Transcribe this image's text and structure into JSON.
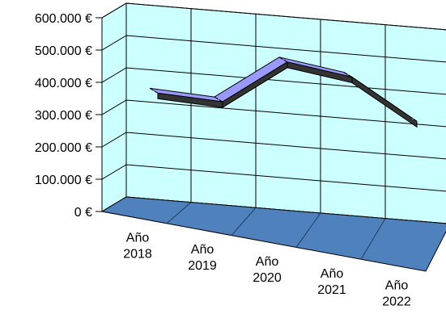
{
  "chart_data": {
    "type": "line",
    "style": "3d-ribbon",
    "categories": [
      [
        "Año",
        "2018"
      ],
      [
        "Año",
        "2019"
      ],
      [
        "Año",
        "2020"
      ],
      [
        "Año",
        "2021"
      ],
      [
        "Año",
        "2022"
      ]
    ],
    "values": [
      350000,
      350000,
      500000,
      480000,
      370000
    ],
    "ylim": [
      0,
      600000
    ],
    "yticks": [
      "0 €",
      "100.000 €",
      "200.000 €",
      "300.000 €",
      "400.000 €",
      "500.000 €",
      "600.000 €"
    ],
    "grid": true,
    "legend": false,
    "title": "",
    "xlabel": "",
    "ylabel": "",
    "colors": {
      "walls": "#ccffff",
      "floor": "#4f81bd",
      "ribbon_top": "#9999ff",
      "ribbon_front": "#333333",
      "grid": "#000000"
    }
  }
}
